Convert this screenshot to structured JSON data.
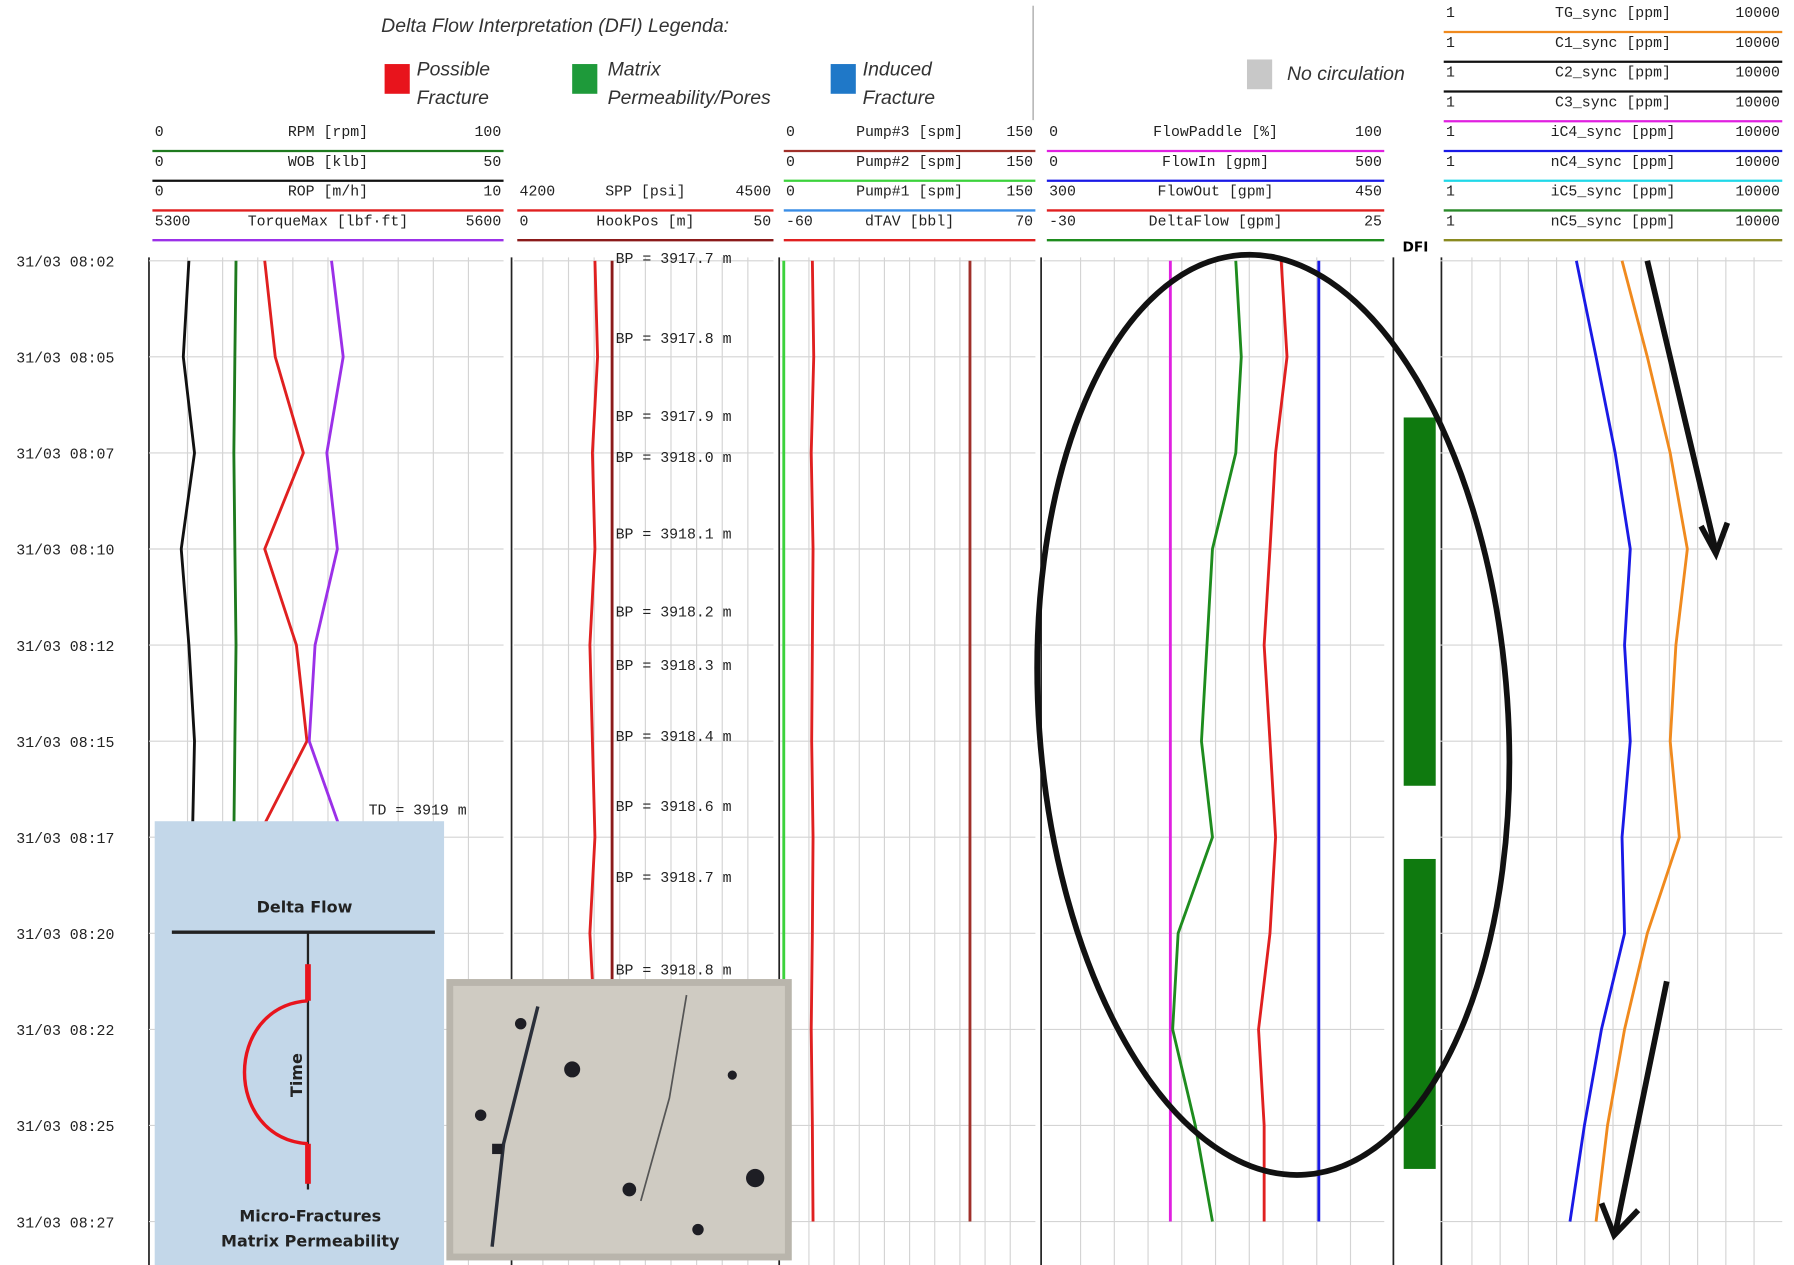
{
  "legend": {
    "title": "Delta Flow Interpretation (DFI) Legenda:",
    "items": [
      {
        "lines": [
          "Possible",
          "Fracture"
        ],
        "color": "#e8141c"
      },
      {
        "lines": [
          "Matrix",
          "Permeability/Pores"
        ],
        "color": "#1e9a3a"
      },
      {
        "lines": [
          "Induced",
          "Fracture"
        ],
        "color": "#1f78c8"
      }
    ],
    "no_circulation": "No circulation"
  },
  "dfi_label": "DFI",
  "time_labels": [
    "31/03 08:02",
    "31/03 08:05",
    "31/03 08:07",
    "31/03 08:10",
    "31/03 08:12",
    "31/03 08:15",
    "31/03 08:17",
    "31/03 08:20",
    "31/03 08:22",
    "31/03 08:25",
    "31/03 08:27"
  ],
  "tracks": [
    {
      "scales": [
        {
          "min": 0,
          "name": "RPM [rpm]",
          "max": 100,
          "color": "#1e7a1e",
          "values": [
            23.8,
            23.5,
            23.2,
            23.5,
            23.8,
            23.5,
            23.2,
            null,
            null,
            null,
            null
          ]
        },
        {
          "min": 0,
          "name": "WOB [klb]",
          "max": 50,
          "color": "#111111",
          "values": [
            5.2,
            4.4,
            6.0,
            4.1,
            5.2,
            6.0,
            5.7,
            null,
            null,
            null,
            null
          ]
        },
        {
          "min": 0,
          "name": "ROP [m/h]",
          "max": 10,
          "color": "#e02020",
          "values": [
            3.2,
            3.5,
            4.3,
            3.2,
            4.1,
            4.4,
            3.0,
            null,
            null,
            null,
            null
          ]
        },
        {
          "min": 5300,
          "name": "TorqueMax [lbf·ft]",
          "max": 5600,
          "color": "#9b30e8",
          "values": [
            5453,
            5463,
            5449,
            5458,
            5439,
            5434,
            5463,
            null,
            null,
            null,
            null
          ]
        }
      ],
      "annotations": [
        "TD = 3919 m"
      ]
    },
    {
      "scales": [
        {
          "min": 4200,
          "name": "SPP [psi]",
          "max": 4500,
          "color": "#e02020",
          "values": [
            4291,
            4294,
            4288,
            4291,
            4285,
            4288,
            4291,
            4285,
            4291,
            4288,
            4291
          ]
        },
        {
          "min": 0,
          "name": "HookPos [m]",
          "max": 50,
          "color": "#8b1a1a",
          "values": [
            18.5,
            18.5,
            18.5,
            18.5,
            18.5,
            18.5,
            18.5,
            18.5,
            18.5,
            18.5,
            18.5
          ]
        }
      ],
      "annotations": [
        "BP = 3917.7 m",
        "BP = 3917.8 m",
        "BP = 3917.9 m",
        "BP = 3918.0 m",
        "BP = 3918.1 m",
        "BP = 3918.2 m",
        "BP = 3918.3 m",
        "BP = 3918.4 m",
        "BP = 3918.6 m",
        "BP = 3918.7 m",
        "BP = 3918.8 m"
      ]
    },
    {
      "scales": [
        {
          "min": 0,
          "name": "Pump#3 [spm]",
          "max": 150,
          "color": "#a0302a",
          "values": [
            111,
            111,
            111,
            111,
            111,
            111,
            111,
            111,
            111,
            111,
            111
          ]
        },
        {
          "min": 0,
          "name": "Pump#2 [spm]",
          "max": 150,
          "color": "#3cd23c",
          "values": [
            0,
            0,
            0,
            0,
            0,
            0,
            0,
            0,
            0,
            0,
            0
          ]
        },
        {
          "min": 0,
          "name": "Pump#1 [spm]",
          "max": 150,
          "color": "#3a8ee6"
        },
        {
          "min": -60,
          "name": "dTAV [bbl]",
          "max": 70,
          "color": "#e02020",
          "values": [
            -45.2,
            -44.5,
            -45.8,
            -44.9,
            -45.2,
            -45.6,
            -44.9,
            -45.2,
            -45.8,
            -45.2,
            -44.9
          ]
        }
      ]
    },
    {
      "scales": [
        {
          "min": 0,
          "name": "FlowPaddle [%]",
          "max": 100,
          "color": "#e020e0",
          "values": [
            36.6,
            36.6,
            36.6,
            36.6,
            36.6,
            36.6,
            36.6,
            36.6,
            36.6,
            36.6,
            36.6
          ]
        },
        {
          "min": 0,
          "name": "FlowIn [gpm]",
          "max": 500,
          "color": "#1a1ae6",
          "values": [
            403,
            403,
            403,
            403,
            403,
            403,
            403,
            403,
            403,
            403,
            403
          ]
        },
        {
          "min": 300,
          "name": "FlowOut [gpm]",
          "max": 450,
          "color": "#e02020",
          "values": [
            404.2,
            406.8,
            401.7,
            399.2,
            396.6,
            399.2,
            401.7,
            399.2,
            394.1,
            396.6,
            396.6
          ]
        },
        {
          "min": -30,
          "name": "DeltaFlow [gpm]",
          "max": 25,
          "color": "#1e8c1e",
          "values": [
            0.8,
            1.7,
            0.8,
            -3.0,
            -3.9,
            -4.8,
            -3.0,
            -8.6,
            -9.5,
            -5.8,
            -3.0
          ]
        }
      ]
    },
    {
      "log": true,
      "scales": [
        {
          "min": 1,
          "name": "TG_sync [ppm]",
          "max": 10000,
          "color": "#f08a1e",
          "values": [
            128,
            254,
            474,
            755,
            554,
            474,
            608,
            254,
            137,
            86,
            63
          ]
        },
        {
          "min": 1,
          "name": "C1_sync [ppm]",
          "max": 10000,
          "color": "#111111"
        },
        {
          "min": 1,
          "name": "C2_sync [ppm]",
          "max": 10000,
          "color": "#111111"
        },
        {
          "min": 1,
          "name": "C3_sync [ppm]",
          "max": 10000,
          "color": "#e020e0"
        },
        {
          "min": 1,
          "name": "iC4_sync [ppm]",
          "max": 10000,
          "color": "#1a1ae6",
          "values": [
            37,
            63,
            106,
            160,
            137,
            160,
            128,
            137,
            73,
            46,
            31
          ]
        },
        {
          "min": 1,
          "name": "nC4_sync [ppm]",
          "max": 10000,
          "color": "#20d8e8"
        },
        {
          "min": 1,
          "name": "iC5_sync [ppm]",
          "max": 10000,
          "color": "#2a8a2a"
        },
        {
          "min": 1,
          "name": "nC5_sync [ppm]",
          "max": 10000,
          "color": "#8a8a20"
        }
      ]
    }
  ],
  "inset": {
    "top_label": "Delta Flow",
    "axis_label": "Time",
    "bottom_lines": [
      "Micro-Fractures",
      "Matrix Permeability"
    ]
  }
}
